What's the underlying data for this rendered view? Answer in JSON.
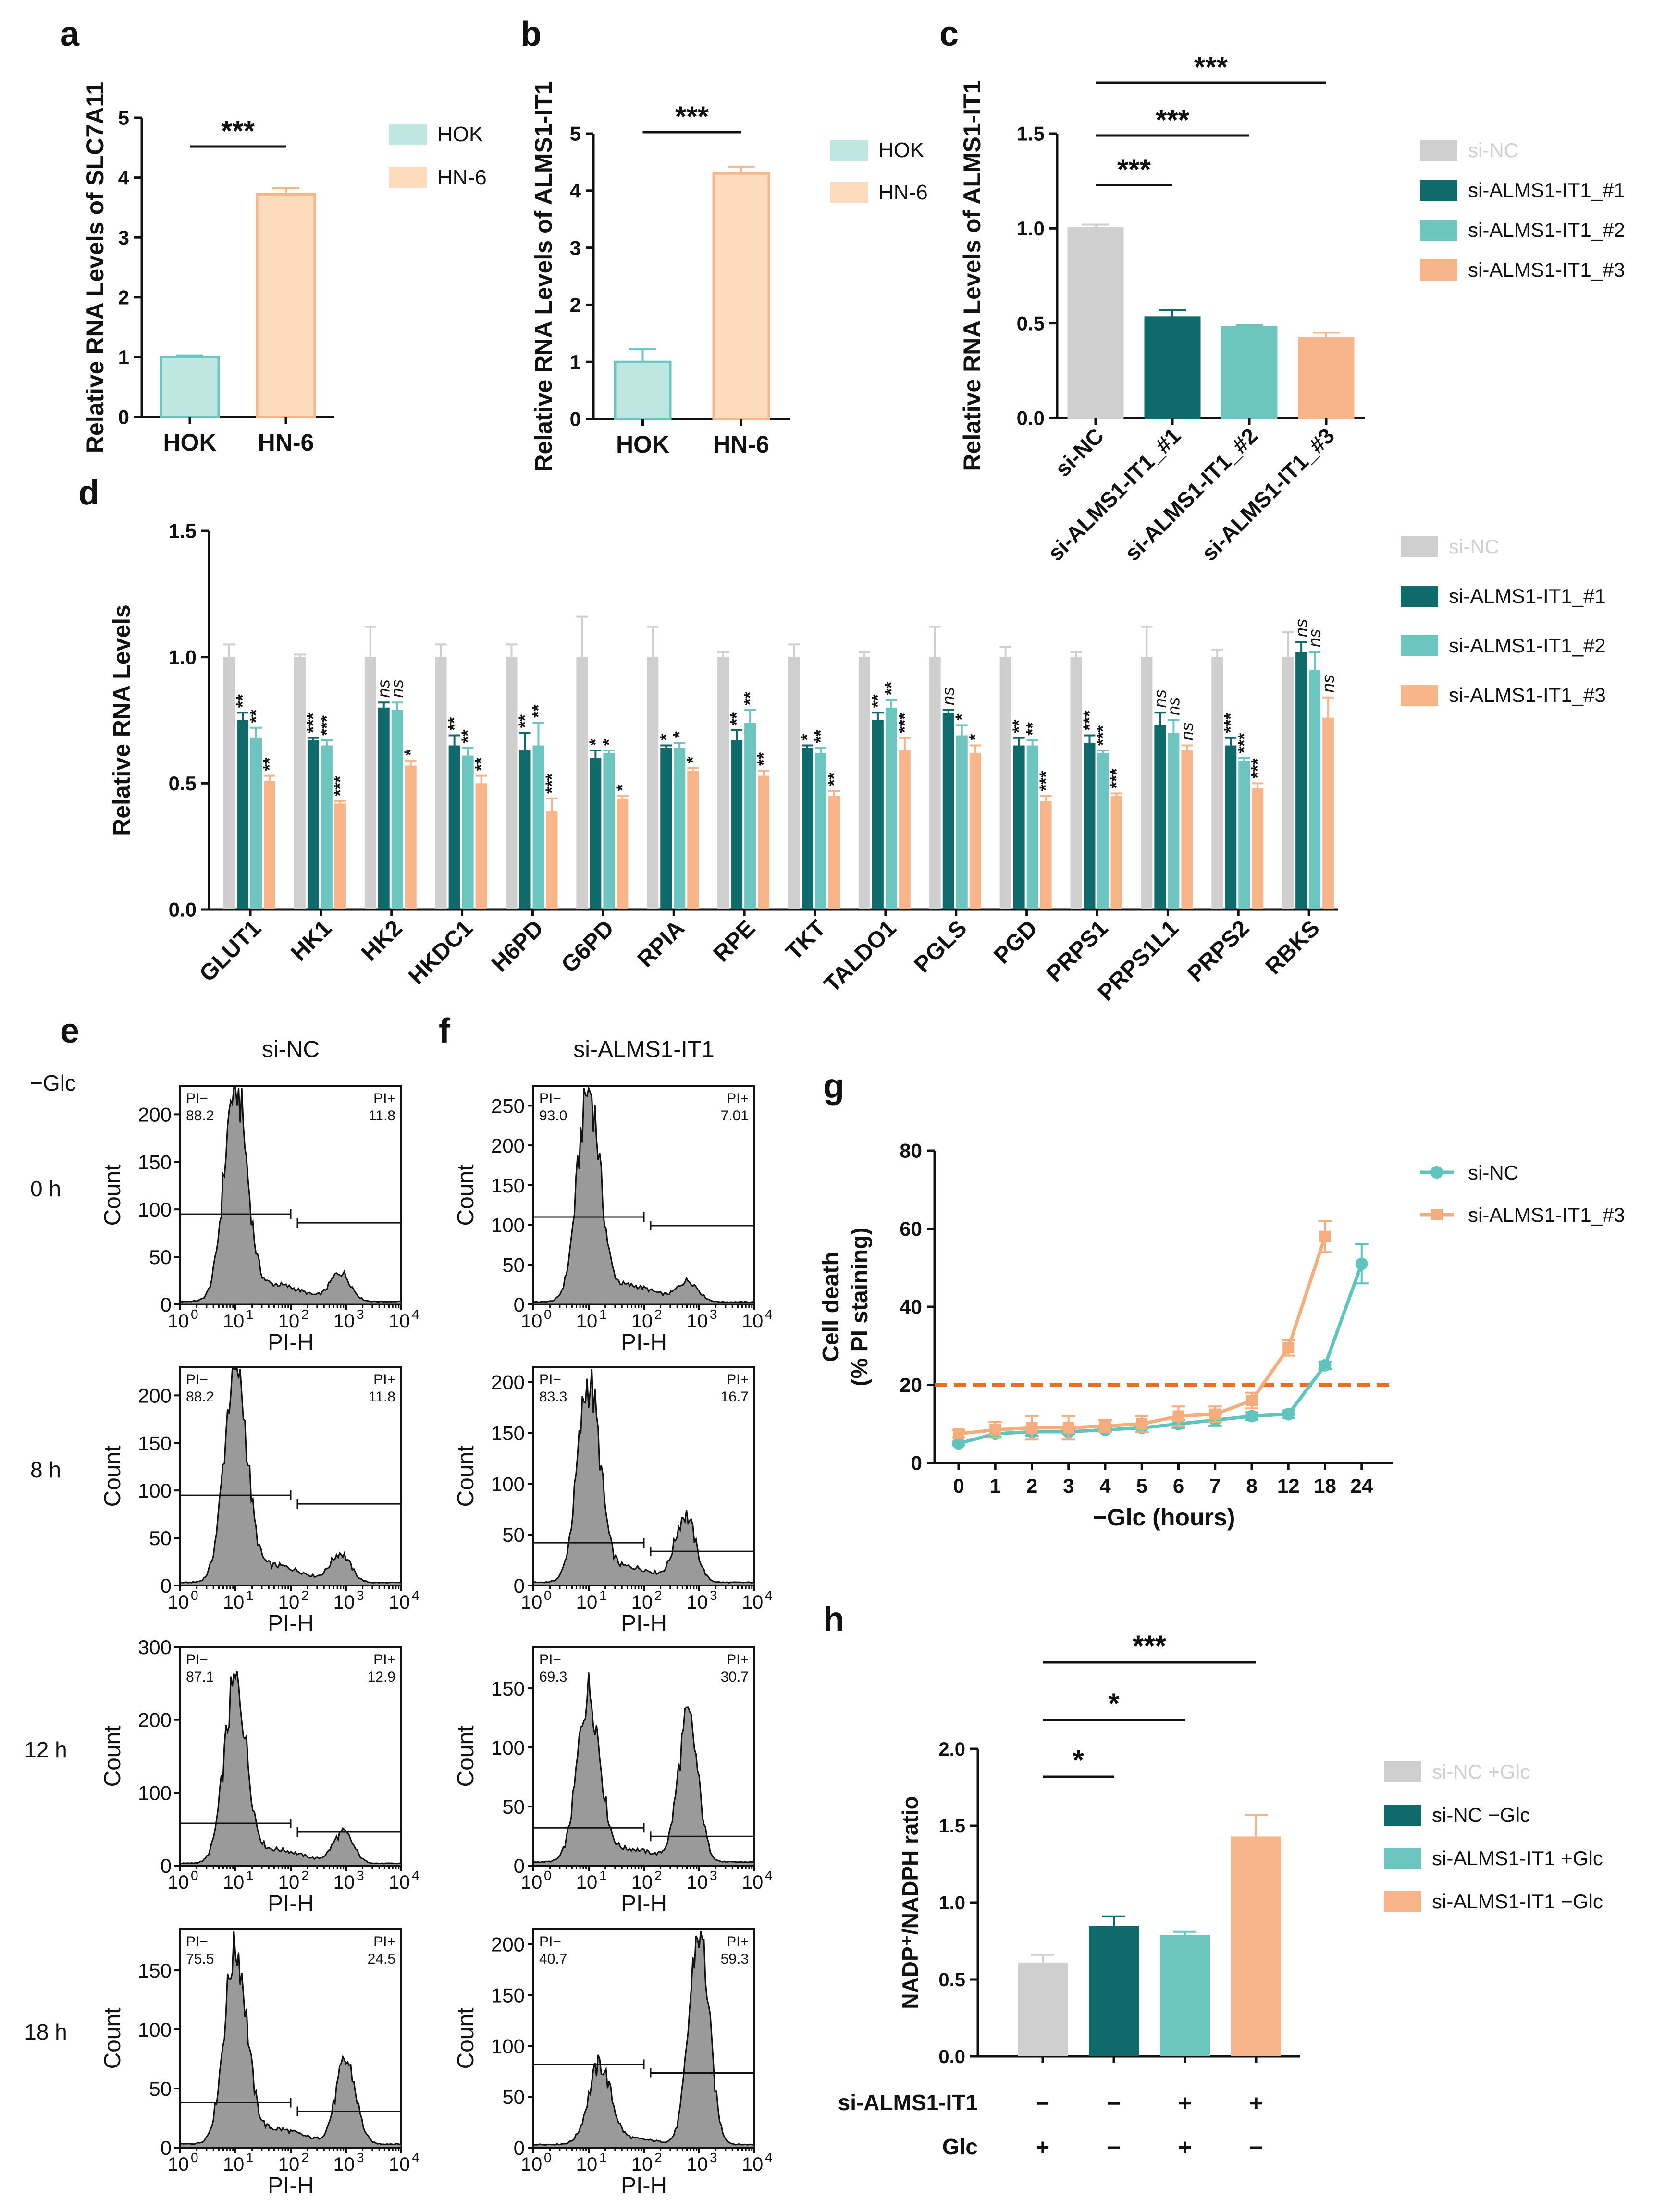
{
  "figure": {
    "panel_labels": {
      "a": "a",
      "b": "b",
      "c": "c",
      "d": "d",
      "e": "e",
      "f": "f",
      "g": "g",
      "h": "h"
    },
    "glc_label": "−Glc",
    "colors": {
      "gray": "#cfcfcf",
      "dark_teal": "#0f6b6b",
      "teal": "#6cc5be",
      "orange": "#f8b58a",
      "pale_teal": "#bfe6e0",
      "pale_orange": "#fddcbd",
      "orange_line": "#f5ad7e",
      "teal_line": "#5fc4bd",
      "threshold": "#f26a1b",
      "hist_fill": "#9a9a9a"
    }
  },
  "chart_data": [
    {
      "id": "a",
      "type": "bar",
      "ylabel": "Relative RNA Levels of SLC7A11",
      "ylim": [
        0,
        5
      ],
      "yticks": [
        "0",
        "1",
        "2",
        "3",
        "4",
        "5"
      ],
      "categories": [
        "HOK",
        "HN-6"
      ],
      "values": [
        1.0,
        3.72
      ],
      "errors": [
        0.03,
        0.1
      ],
      "legend": [
        "HOK",
        "HN-6"
      ],
      "significance": [
        {
          "from": 0,
          "to": 1,
          "label": "***"
        }
      ]
    },
    {
      "id": "b",
      "type": "bar",
      "ylabel": "Relative RNA Levels of ALMS1-IT1",
      "ylim": [
        0,
        5
      ],
      "yticks": [
        "0",
        "1",
        "2",
        "3",
        "4",
        "5"
      ],
      "categories": [
        "HOK",
        "HN-6"
      ],
      "values": [
        1.0,
        4.3
      ],
      "errors": [
        0.22,
        0.12
      ],
      "legend": [
        "HOK",
        "HN-6"
      ],
      "significance": [
        {
          "from": 0,
          "to": 1,
          "label": "***"
        }
      ]
    },
    {
      "id": "c",
      "type": "bar",
      "ylabel": "Relative RNA Levels of ALMS1-IT1",
      "ylim": [
        0,
        1.5
      ],
      "yticks": [
        "0.0",
        "0.5",
        "1.0",
        "1.5"
      ],
      "categories": [
        "si-NC",
        "si-ALMS1-IT1_#1",
        "si-ALMS1-IT1_#2",
        "si-ALMS1-IT1_#3"
      ],
      "values": [
        1.0,
        0.53,
        0.48,
        0.42
      ],
      "errors": [
        0.02,
        0.04,
        0.01,
        0.03
      ],
      "legend": [
        "si-NC",
        "si-ALMS1-IT1_#1",
        "si-ALMS1-IT1_#2",
        "si-ALMS1-IT1_#3"
      ],
      "significance": [
        {
          "from": 0,
          "to": 1,
          "label": "***"
        },
        {
          "from": 0,
          "to": 2,
          "label": "***"
        },
        {
          "from": 0,
          "to": 3,
          "label": "***"
        }
      ]
    },
    {
      "id": "d",
      "type": "bar",
      "ylabel": "Relative RNA Levels",
      "ylim": [
        0,
        1.5
      ],
      "yticks": [
        "0.0",
        "0.5",
        "1.0",
        "1.5"
      ],
      "categories": [
        "GLUT1",
        "HK1",
        "HK2",
        "HKDC1",
        "H6PD",
        "G6PD",
        "RPIA",
        "RPE",
        "TKT",
        "TALDO1",
        "PGLS",
        "PGD",
        "PRPS1",
        "PRPS1L1",
        "PRPS2",
        "RBKS"
      ],
      "series": [
        {
          "name": "si-NC",
          "values": [
            1,
            1,
            1,
            1,
            1,
            1,
            1,
            1,
            1,
            1,
            1,
            1,
            1,
            1,
            1,
            1
          ],
          "errors": [
            0.05,
            0.01,
            0.12,
            0.05,
            0.05,
            0.16,
            0.12,
            0.02,
            0.05,
            0.02,
            0.12,
            0.04,
            0.02,
            0.12,
            0.03,
            0.1
          ]
        },
        {
          "name": "si-ALMS1-IT1_#1",
          "values": [
            0.75,
            0.67,
            0.8,
            0.65,
            0.63,
            0.6,
            0.64,
            0.67,
            0.64,
            0.75,
            0.78,
            0.65,
            0.66,
            0.73,
            0.65,
            1.02
          ],
          "errors": [
            0.03,
            0.01,
            0.02,
            0.04,
            0.07,
            0.03,
            0.01,
            0.04,
            0.01,
            0.03,
            0.01,
            0.03,
            0.03,
            0.05,
            0.03,
            0.04
          ]
        },
        {
          "name": "si-ALMS1-IT1_#2",
          "values": [
            0.68,
            0.65,
            0.79,
            0.61,
            0.65,
            0.62,
            0.64,
            0.74,
            0.62,
            0.8,
            0.69,
            0.65,
            0.62,
            0.7,
            0.59,
            0.95
          ],
          "errors": [
            0.04,
            0.02,
            0.03,
            0.03,
            0.09,
            0.01,
            0.02,
            0.05,
            0.02,
            0.03,
            0.04,
            0.02,
            0.01,
            0.05,
            0.01,
            0.07
          ]
        },
        {
          "name": "si-ALMS1-IT1_#3",
          "values": [
            0.51,
            0.42,
            0.57,
            0.5,
            0.39,
            0.44,
            0.55,
            0.53,
            0.45,
            0.63,
            0.62,
            0.43,
            0.45,
            0.63,
            0.48,
            0.76
          ],
          "errors": [
            0.02,
            0.01,
            0.02,
            0.03,
            0.05,
            0.01,
            0.01,
            0.02,
            0.02,
            0.05,
            0.03,
            0.02,
            0.01,
            0.02,
            0.02,
            0.08
          ]
        }
      ],
      "stars": [
        [
          "**",
          "**",
          "**"
        ],
        [
          "***",
          "***",
          "***"
        ],
        [
          "ns",
          "ns",
          "*"
        ],
        [
          "**",
          "**",
          "**"
        ],
        [
          "**",
          "**",
          "***"
        ],
        [
          "*",
          "*",
          "*"
        ],
        [
          "*",
          "*",
          "*"
        ],
        [
          "**",
          "**",
          "**"
        ],
        [
          "*",
          "**",
          "**"
        ],
        [
          "**",
          "**",
          "***"
        ],
        [
          "ns",
          "*",
          "*"
        ],
        [
          "**",
          "**",
          "***"
        ],
        [
          "***",
          "***",
          "***"
        ],
        [
          "ns",
          "ns",
          "ns"
        ],
        [
          "***",
          "***",
          "***"
        ],
        [
          "ns",
          "ns",
          "ns"
        ]
      ],
      "legend": [
        "si-NC",
        "si-ALMS1-IT1_#1",
        "si-ALMS1-IT1_#2",
        "si-ALMS1-IT1_#3"
      ]
    },
    {
      "id": "e",
      "type": "histogram",
      "title": "si-NC",
      "xlabel": "PI-H",
      "ylabel": "Count",
      "x_ticks": [
        "10",
        "10",
        "10",
        "10",
        "10"
      ],
      "x_tick_exponents": [
        "0",
        "1",
        "2",
        "3",
        "4"
      ],
      "rows": [
        {
          "time": "0 h",
          "pi_minus_label": "PI−",
          "pi_minus": "88.2",
          "pi_plus_label": "PI+",
          "pi_plus": "11.8",
          "ymax": 230,
          "yticks": [
            "0",
            "50",
            "100",
            "150",
            "200"
          ],
          "gate_count": 95,
          "peak_count": 225,
          "high_peak_count": 30,
          "peak1_center": 1.0,
          "peak2_center": 2.9,
          "peak2_ratio": 0.14
        },
        {
          "time": "8 h",
          "pi_minus_label": "PI−",
          "pi_minus": "88.2",
          "pi_plus_label": "PI+",
          "pi_plus": "11.8",
          "ymax": 230,
          "yticks": [
            "0",
            "50",
            "100",
            "150",
            "200"
          ],
          "gate_count": 95,
          "peak_count": 225,
          "high_peak_count": 30,
          "peak1_center": 1.0,
          "peak2_center": 2.9,
          "peak2_ratio": 0.14
        },
        {
          "time": "12 h",
          "pi_minus_label": "PI−",
          "pi_minus": "87.1",
          "pi_plus_label": "PI+",
          "pi_plus": "12.9",
          "ymax": 300,
          "yticks": [
            "0",
            "100",
            "200",
            "300"
          ],
          "gate_count": 58,
          "peak_count": 240,
          "high_peak_count": 42,
          "peak1_center": 1.0,
          "peak2_center": 2.95,
          "peak2_ratio": 0.17
        },
        {
          "time": "18 h",
          "pi_minus_label": "PI−",
          "pi_minus": "75.5",
          "pi_plus_label": "PI+",
          "pi_plus": "24.5",
          "ymax": 185,
          "yticks": [
            "0",
            "50",
            "100",
            "150"
          ],
          "gate_count": 38,
          "peak_count": 162,
          "high_peak_count": 70,
          "peak1_center": 1.0,
          "peak2_center": 3.0,
          "peak2_ratio": 0.44
        }
      ]
    },
    {
      "id": "f",
      "type": "histogram",
      "title": "si-ALMS1-IT1",
      "xlabel": "PI-H",
      "ylabel": "Count",
      "x_ticks": [
        "10",
        "10",
        "10",
        "10",
        "10"
      ],
      "x_tick_exponents": [
        "0",
        "1",
        "2",
        "3",
        "4"
      ],
      "rows": [
        {
          "time": "0 h",
          "pi_minus_label": "PI−",
          "pi_minus": "93.0",
          "pi_plus_label": "PI+",
          "pi_plus": "7.01",
          "ymax": 275,
          "yticks": [
            "0",
            "50",
            "100",
            "150",
            "200",
            "250"
          ],
          "gate_count": 110,
          "peak_count": 262,
          "high_peak_count": 25,
          "peak1_center": 1.0,
          "peak2_center": 2.8,
          "peak2_ratio": 0.1
        },
        {
          "time": "8 h",
          "pi_minus_label": "PI−",
          "pi_minus": "83.3",
          "pi_plus_label": "PI+",
          "pi_plus": "16.7",
          "ymax": 215,
          "yticks": [
            "0",
            "50",
            "100",
            "150",
            "200"
          ],
          "gate_count": 42,
          "peak_count": 192,
          "high_peak_count": 65,
          "peak1_center": 1.0,
          "peak2_center": 2.75,
          "peak2_ratio": 0.34
        },
        {
          "time": "12 h",
          "pi_minus_label": "PI−",
          "pi_minus": "69.3",
          "pi_plus_label": "PI+",
          "pi_plus": "30.7",
          "ymax": 185,
          "yticks": [
            "0",
            "50",
            "100",
            "150"
          ],
          "gate_count": 32,
          "peak_count": 140,
          "high_peak_count": 120,
          "peak1_center": 1.0,
          "peak2_center": 2.8,
          "peak2_ratio": 0.85
        },
        {
          "time": "18 h",
          "pi_minus_label": "PI−",
          "pi_minus": "40.7",
          "pi_plus_label": "PI+",
          "pi_plus": "59.3",
          "ymax": 215,
          "yticks": [
            "0",
            "50",
            "100",
            "150",
            "200"
          ],
          "gate_count": 82,
          "peak_count": 75,
          "high_peak_count": 210,
          "peak1_center": 1.2,
          "peak2_center": 3.0,
          "peak2_ratio": 2.8
        }
      ]
    },
    {
      "id": "g",
      "type": "line",
      "ylabel": "Cell death",
      "ylabel2": "(% PI staining)",
      "xlabel": "−Glc (hours)",
      "x": [
        "0",
        "1",
        "2",
        "3",
        "4",
        "5",
        "6",
        "7",
        "8",
        "12",
        "18",
        "24"
      ],
      "ylim": [
        0,
        80
      ],
      "yticks": [
        "0",
        "20",
        "40",
        "60",
        "80"
      ],
      "threshold": 20,
      "series": [
        {
          "name": "si-NC",
          "values": [
            5,
            7.5,
            8,
            8,
            8.5,
            9,
            10,
            11,
            12,
            12.5,
            25,
            51
          ],
          "errors": [
            0.5,
            1,
            1,
            0.5,
            0.5,
            1,
            1,
            1.5,
            1,
            1,
            1,
            5
          ]
        },
        {
          "name": "si-ALMS1-IT1_#3",
          "values": [
            7.5,
            8.5,
            9,
            9,
            9.5,
            10,
            12,
            12.5,
            16,
            29.5,
            58,
            null
          ],
          "errors": [
            1,
            2,
            3,
            3,
            1.5,
            2,
            2.5,
            2,
            2,
            2,
            4,
            null
          ]
        }
      ]
    },
    {
      "id": "h",
      "type": "bar",
      "ylabel": "NADP⁺/NADPH ratio",
      "ylim": [
        0,
        2.0
      ],
      "yticks": [
        "0.0",
        "0.5",
        "1.0",
        "1.5",
        "2.0"
      ],
      "categories": [
        "si-NC +Glc",
        "si-NC −Glc",
        "si-ALMS1-IT1 +Glc",
        "si-ALMS1-IT1 −Glc"
      ],
      "values": [
        0.61,
        0.85,
        0.79,
        1.43
      ],
      "errors": [
        0.05,
        0.06,
        0.02,
        0.14
      ],
      "legend": [
        "si-NC +Glc",
        "si-NC −Glc",
        "si-ALMS1-IT1 +Glc",
        "si-ALMS1-IT1 −Glc"
      ],
      "significance": [
        {
          "from": 0,
          "to": 1,
          "label": "*"
        },
        {
          "from": 0,
          "to": 2,
          "label": "*"
        },
        {
          "from": 0,
          "to": 3,
          "label": "***"
        }
      ],
      "row_labels": [
        "si-ALMS1-IT1",
        "Glc"
      ],
      "row_values": [
        [
          "−",
          "−",
          "+",
          "+"
        ],
        [
          "+",
          "−",
          "+",
          "−"
        ]
      ]
    }
  ]
}
